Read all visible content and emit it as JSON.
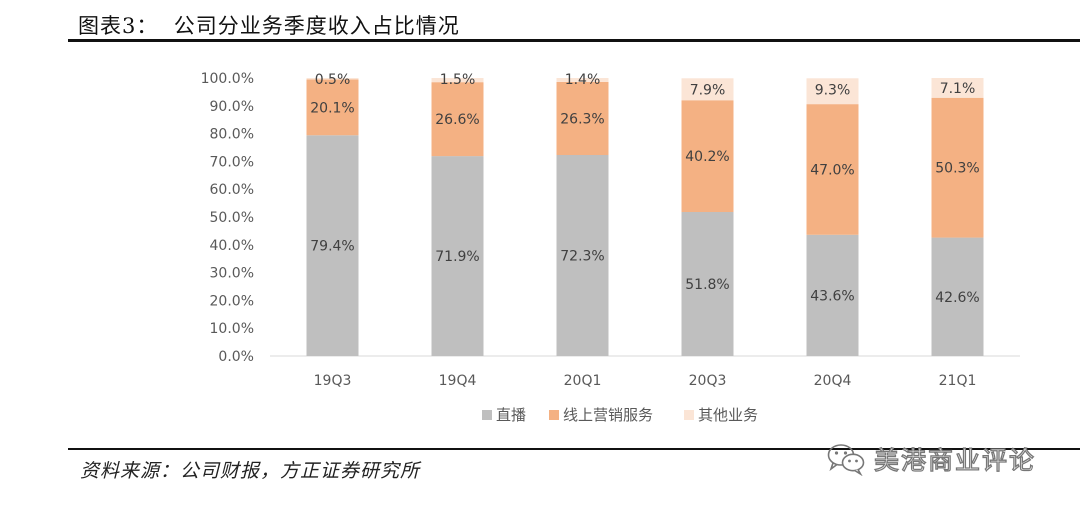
{
  "figure": {
    "title": "图表3：  公司分业务季度收入占比情况",
    "source": "资料来源：公司财报，方正证券研究所",
    "watermark": "美港商业评论"
  },
  "chart_data": {
    "type": "bar",
    "stacked": true,
    "title": "",
    "xlabel": "",
    "ylabel": "",
    "ylim": [
      0,
      100
    ],
    "y_ticks": [
      "0.0%",
      "10.0%",
      "20.0%",
      "30.0%",
      "40.0%",
      "50.0%",
      "60.0%",
      "70.0%",
      "80.0%",
      "90.0%",
      "100.0%"
    ],
    "categories": [
      "19Q3",
      "19Q4",
      "20Q1",
      "20Q3",
      "20Q4",
      "21Q1"
    ],
    "series": [
      {
        "name": "直播",
        "color": "#BFBFBF",
        "values": [
          79.4,
          71.9,
          72.3,
          51.8,
          43.6,
          42.6
        ],
        "labels": [
          "79.4%",
          "71.9%",
          "72.3%",
          "51.8%",
          "43.6%",
          "42.6%"
        ]
      },
      {
        "name": "线上营销服务",
        "color": "#F4B183",
        "values": [
          20.1,
          26.6,
          26.3,
          40.2,
          47.0,
          50.3
        ],
        "labels": [
          "20.1%",
          "26.6%",
          "26.3%",
          "40.2%",
          "47.0%",
          "50.3%"
        ]
      },
      {
        "name": "其他业务",
        "color": "#FBE5D6",
        "values": [
          0.5,
          1.5,
          1.4,
          7.9,
          9.3,
          7.1
        ],
        "labels": [
          "0.5%",
          "1.5%",
          "1.4%",
          "7.9%",
          "9.3%",
          "7.1%"
        ]
      }
    ],
    "legend_position": "bottom",
    "grid": false
  }
}
